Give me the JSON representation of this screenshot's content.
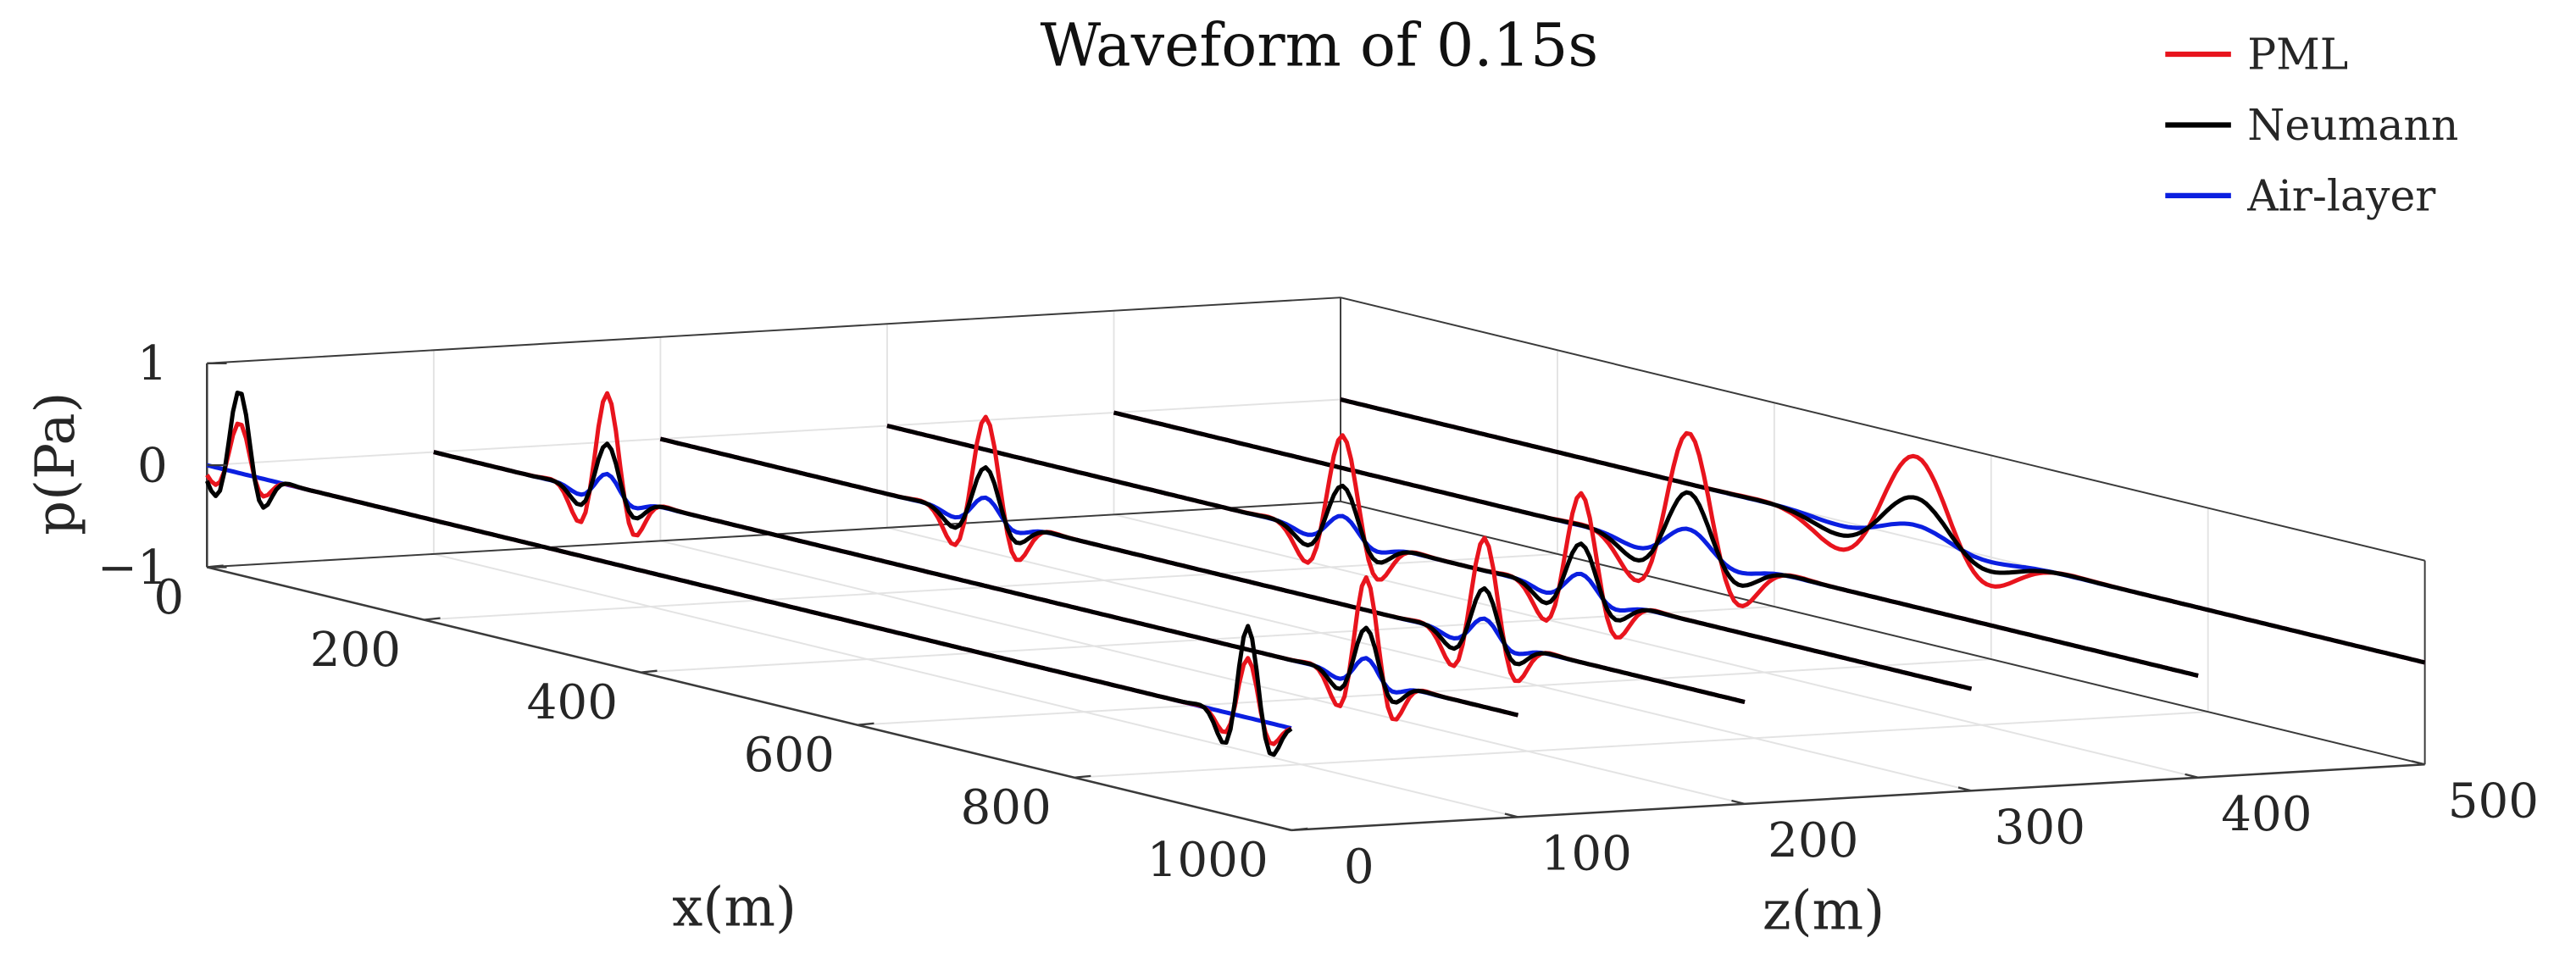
{
  "chart_data": {
    "type": "line",
    "projection": "3d",
    "title": "Waveform of 0.15s",
    "xlabel": "x(m)",
    "ylabel": "z(m)",
    "zlabel": "p(Pa)",
    "xlim": [
      0,
      1000
    ],
    "ylim": [
      0,
      500
    ],
    "zlim": [
      -1,
      1
    ],
    "xticks": [
      "0",
      "200",
      "400",
      "600",
      "800",
      "1000"
    ],
    "yticks": [
      "0",
      "100",
      "200",
      "300",
      "400",
      "500"
    ],
    "zticks": [
      "−1",
      "0",
      "1"
    ],
    "grid": true,
    "legend": {
      "location": "top-right",
      "entries": [
        {
          "label": "PML",
          "color": "#e8141d"
        },
        {
          "label": "Neumann",
          "color": "#000000"
        },
        {
          "label": "Air-layer",
          "color": "#0b1fe0"
        }
      ]
    },
    "traces_z_m": [
      0,
      100,
      200,
      300,
      400,
      500
    ],
    "pulses": [
      {
        "z": 0,
        "x": 30,
        "pml": 0.55,
        "neumann": 0.9,
        "air": 0.0,
        "width": 30
      },
      {
        "z": 0,
        "x": 960,
        "pml": 0.65,
        "neumann": 1.0,
        "air": 0.0,
        "width": 30
      },
      {
        "z": 100,
        "x": 160,
        "pml": 1.1,
        "neumann": 0.55,
        "air": 0.22,
        "width": 35
      },
      {
        "z": 100,
        "x": 860,
        "pml": 1.1,
        "neumann": 0.55,
        "air": 0.22,
        "width": 35
      },
      {
        "z": 200,
        "x": 300,
        "pml": 1.1,
        "neumann": 0.55,
        "air": 0.22,
        "width": 40
      },
      {
        "z": 200,
        "x": 760,
        "pml": 1.1,
        "neumann": 0.55,
        "air": 0.22,
        "width": 40
      },
      {
        "z": 300,
        "x": 420,
        "pml": 1.1,
        "neumann": 0.55,
        "air": 0.22,
        "width": 45
      },
      {
        "z": 300,
        "x": 640,
        "pml": 1.1,
        "neumann": 0.55,
        "air": 0.22,
        "width": 45
      },
      {
        "z": 400,
        "x": 530,
        "pml": 1.3,
        "neumann": 0.65,
        "air": 0.25,
        "width": 65
      },
      {
        "z": 500,
        "x": 530,
        "pml": 0.9,
        "neumann": 0.45,
        "air": 0.15,
        "width": 95
      }
    ]
  }
}
